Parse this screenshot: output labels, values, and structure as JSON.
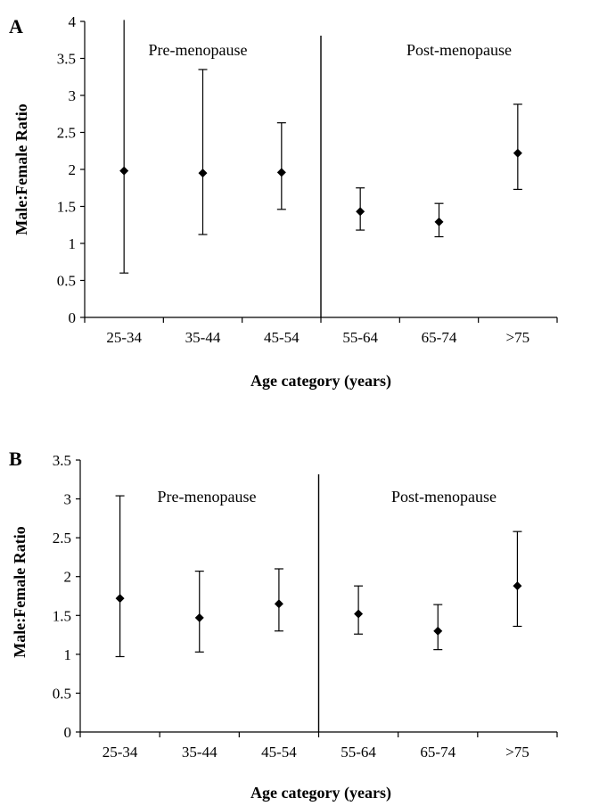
{
  "chart_data": [
    {
      "panel": "A",
      "type": "scatter",
      "categories": [
        "25-34",
        "35-44",
        "45-54",
        "55-64",
        "65-74",
        ">75"
      ],
      "values": [
        1.98,
        1.95,
        1.96,
        1.43,
        1.29,
        2.22
      ],
      "lower": [
        0.6,
        1.12,
        1.46,
        1.18,
        1.09,
        1.73
      ],
      "upper": [
        4.05,
        3.35,
        2.63,
        1.75,
        1.54,
        2.88
      ],
      "ylabel": "Male:Female Ratio",
      "xlabel": "Age category (years)",
      "ylim": [
        0,
        4
      ],
      "yticks": [
        "0",
        "0.5",
        "1",
        "1.5",
        "2",
        "2.5",
        "3",
        "3.5",
        "4"
      ],
      "regions": [
        "Pre-menopause",
        "Post-menopause"
      ],
      "divider_after": "45-54",
      "grid": false
    },
    {
      "panel": "B",
      "type": "scatter",
      "categories": [
        "25-34",
        "35-44",
        "45-54",
        "55-64",
        "65-74",
        ">75"
      ],
      "values": [
        1.72,
        1.47,
        1.65,
        1.52,
        1.3,
        1.88
      ],
      "lower": [
        0.97,
        1.03,
        1.3,
        1.26,
        1.06,
        1.36
      ],
      "upper": [
        3.04,
        2.07,
        2.1,
        1.88,
        1.64,
        2.58
      ],
      "ylabel": "Male:Female Ratio",
      "xlabel": "Age category (years)",
      "ylim": [
        0,
        3.5
      ],
      "yticks": [
        "0",
        "0.5",
        "1",
        "1.5",
        "2",
        "2.5",
        "3",
        "3.5"
      ],
      "regions": [
        "Pre-menopause",
        "Post-menopause"
      ],
      "divider_after": "45-54",
      "grid": false
    }
  ]
}
